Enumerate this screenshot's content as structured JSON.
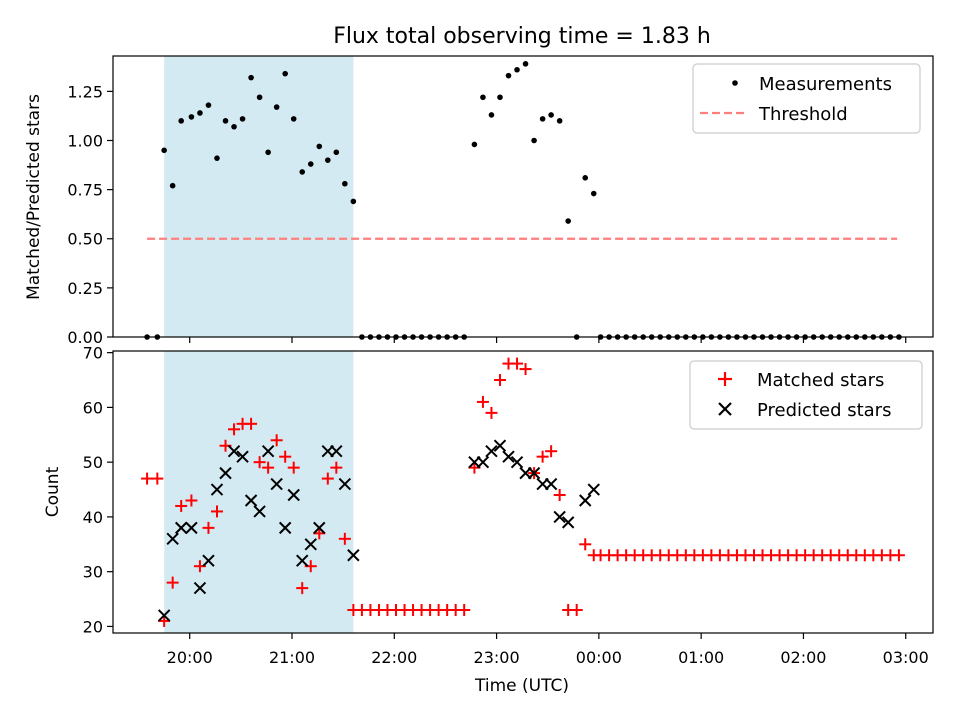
{
  "figure": {
    "title": "Flux total observing time = 1.83 h",
    "xlabel": "Time (UTC)",
    "xticks": [
      "20:00",
      "21:00",
      "22:00",
      "23:00",
      "00:00",
      "01:00",
      "02:00",
      "03:00"
    ]
  },
  "colors": {
    "measurement": "#000000",
    "threshold": "#ff7f7f",
    "matched": "#ff0000",
    "predicted": "#000000",
    "shade": "#add8e6"
  },
  "chart_data": [
    {
      "type": "scatter",
      "ylabel": "Matched/Predicted stars",
      "xlim": [
        "19:15",
        "03:16"
      ],
      "ylim": [
        0,
        1.43
      ],
      "yticks": [
        "0.00",
        "0.25",
        "0.50",
        "0.75",
        "1.00",
        "1.25"
      ],
      "shaded_region": [
        "19:45",
        "21:36"
      ],
      "legend_position": "upper right",
      "legend": [
        "Measurements",
        "Threshold"
      ],
      "threshold": {
        "name": "Threshold",
        "y": 0.5,
        "x_range": [
          "19:35",
          "02:55"
        ]
      },
      "series": [
        {
          "name": "Measurements",
          "points": [
            [
              "19:35",
              0
            ],
            [
              "19:41",
              0
            ],
            [
              "19:45",
              0.95
            ],
            [
              "19:50",
              0.77
            ],
            [
              "19:55",
              1.1
            ],
            [
              "20:01",
              1.12
            ],
            [
              "20:06",
              1.14
            ],
            [
              "20:11",
              1.18
            ],
            [
              "20:16",
              0.91
            ],
            [
              "20:21",
              1.1
            ],
            [
              "20:26",
              1.07
            ],
            [
              "20:31",
              1.11
            ],
            [
              "20:36",
              1.32
            ],
            [
              "20:41",
              1.22
            ],
            [
              "20:46",
              0.94
            ],
            [
              "20:51",
              1.17
            ],
            [
              "20:56",
              1.34
            ],
            [
              "21:01",
              1.11
            ],
            [
              "21:06",
              0.84
            ],
            [
              "21:11",
              0.88
            ],
            [
              "21:16",
              0.97
            ],
            [
              "21:21",
              0.9
            ],
            [
              "21:26",
              0.94
            ],
            [
              "21:31",
              0.78
            ],
            [
              "21:36",
              0.69
            ],
            [
              "21:41",
              0
            ],
            [
              "21:46",
              0
            ],
            [
              "21:51",
              0
            ],
            [
              "21:56",
              0
            ],
            [
              "22:01",
              0
            ],
            [
              "22:06",
              0
            ],
            [
              "22:11",
              0
            ],
            [
              "22:16",
              0
            ],
            [
              "22:21",
              0
            ],
            [
              "22:26",
              0
            ],
            [
              "22:31",
              0
            ],
            [
              "22:36",
              0
            ],
            [
              "22:41",
              0
            ],
            [
              "22:47",
              0.98
            ],
            [
              "22:52",
              1.22
            ],
            [
              "22:57",
              1.13
            ],
            [
              "23:02",
              1.22
            ],
            [
              "23:07",
              1.33
            ],
            [
              "23:12",
              1.36
            ],
            [
              "23:17",
              1.39
            ],
            [
              "23:22",
              1.0
            ],
            [
              "23:27",
              1.11
            ],
            [
              "23:32",
              1.13
            ],
            [
              "23:37",
              1.1
            ],
            [
              "23:42",
              0.59
            ],
            [
              "23:47",
              0
            ],
            [
              "23:52",
              0.81
            ],
            [
              "23:57",
              0.73
            ],
            [
              "00:01",
              0
            ],
            [
              "00:06",
              0
            ],
            [
              "00:11",
              0
            ],
            [
              "00:16",
              0
            ],
            [
              "00:21",
              0
            ],
            [
              "00:26",
              0
            ],
            [
              "00:31",
              0
            ],
            [
              "00:36",
              0
            ],
            [
              "00:41",
              0
            ],
            [
              "00:46",
              0
            ],
            [
              "00:51",
              0
            ],
            [
              "00:56",
              0
            ],
            [
              "01:01",
              0
            ],
            [
              "01:06",
              0
            ],
            [
              "01:11",
              0
            ],
            [
              "01:16",
              0
            ],
            [
              "01:21",
              0
            ],
            [
              "01:26",
              0
            ],
            [
              "01:31",
              0
            ],
            [
              "01:36",
              0
            ],
            [
              "01:41",
              0
            ],
            [
              "01:46",
              0
            ],
            [
              "01:51",
              0
            ],
            [
              "01:56",
              0
            ],
            [
              "02:01",
              0
            ],
            [
              "02:06",
              0
            ],
            [
              "02:11",
              0
            ],
            [
              "02:16",
              0
            ],
            [
              "02:21",
              0
            ],
            [
              "02:26",
              0
            ],
            [
              "02:31",
              0
            ],
            [
              "02:36",
              0
            ],
            [
              "02:41",
              0
            ],
            [
              "02:46",
              0
            ],
            [
              "02:51",
              0
            ],
            [
              "02:56",
              0
            ]
          ]
        }
      ]
    },
    {
      "type": "scatter",
      "ylabel": "Count",
      "xlim": [
        "19:15",
        "03:16"
      ],
      "ylim": [
        18.8,
        70.3
      ],
      "yticks": [
        "20",
        "30",
        "40",
        "50",
        "60",
        "70"
      ],
      "shaded_region": [
        "19:45",
        "21:36"
      ],
      "legend_position": "upper right",
      "legend": [
        "Matched stars",
        "Predicted stars"
      ],
      "series": [
        {
          "name": "Matched stars",
          "marker": "plus",
          "points": [
            [
              "19:35",
              47
            ],
            [
              "19:41",
              47
            ],
            [
              "19:45",
              21
            ],
            [
              "19:50",
              28
            ],
            [
              "19:55",
              42
            ],
            [
              "20:01",
              43
            ],
            [
              "20:06",
              31
            ],
            [
              "20:11",
              38
            ],
            [
              "20:16",
              41
            ],
            [
              "20:21",
              53
            ],
            [
              "20:26",
              56
            ],
            [
              "20:31",
              57
            ],
            [
              "20:36",
              57
            ],
            [
              "20:41",
              50
            ],
            [
              "20:46",
              49
            ],
            [
              "20:51",
              54
            ],
            [
              "20:56",
              51
            ],
            [
              "21:01",
              49
            ],
            [
              "21:06",
              27
            ],
            [
              "21:11",
              31
            ],
            [
              "21:16",
              37
            ],
            [
              "21:21",
              47
            ],
            [
              "21:26",
              49
            ],
            [
              "21:31",
              36
            ],
            [
              "21:36",
              23
            ],
            [
              "21:41",
              23
            ],
            [
              "21:46",
              23
            ],
            [
              "21:51",
              23
            ],
            [
              "21:56",
              23
            ],
            [
              "22:01",
              23
            ],
            [
              "22:06",
              23
            ],
            [
              "22:11",
              23
            ],
            [
              "22:16",
              23
            ],
            [
              "22:21",
              23
            ],
            [
              "22:26",
              23
            ],
            [
              "22:31",
              23
            ],
            [
              "22:36",
              23
            ],
            [
              "22:41",
              23
            ],
            [
              "22:47",
              49
            ],
            [
              "22:52",
              61
            ],
            [
              "22:57",
              59
            ],
            [
              "23:02",
              65
            ],
            [
              "23:07",
              68
            ],
            [
              "23:12",
              68
            ],
            [
              "23:17",
              67
            ],
            [
              "23:22",
              48
            ],
            [
              "23:27",
              51
            ],
            [
              "23:32",
              52
            ],
            [
              "23:37",
              44
            ],
            [
              "23:42",
              23
            ],
            [
              "23:47",
              23
            ],
            [
              "23:52",
              35
            ],
            [
              "23:57",
              33
            ],
            [
              "00:01",
              33
            ],
            [
              "00:06",
              33
            ],
            [
              "00:11",
              33
            ],
            [
              "00:16",
              33
            ],
            [
              "00:21",
              33
            ],
            [
              "00:26",
              33
            ],
            [
              "00:31",
              33
            ],
            [
              "00:36",
              33
            ],
            [
              "00:41",
              33
            ],
            [
              "00:46",
              33
            ],
            [
              "00:51",
              33
            ],
            [
              "00:56",
              33
            ],
            [
              "01:01",
              33
            ],
            [
              "01:06",
              33
            ],
            [
              "01:11",
              33
            ],
            [
              "01:16",
              33
            ],
            [
              "01:21",
              33
            ],
            [
              "01:26",
              33
            ],
            [
              "01:31",
              33
            ],
            [
              "01:36",
              33
            ],
            [
              "01:41",
              33
            ],
            [
              "01:46",
              33
            ],
            [
              "01:51",
              33
            ],
            [
              "01:56",
              33
            ],
            [
              "02:01",
              33
            ],
            [
              "02:06",
              33
            ],
            [
              "02:11",
              33
            ],
            [
              "02:16",
              33
            ],
            [
              "02:21",
              33
            ],
            [
              "02:26",
              33
            ],
            [
              "02:31",
              33
            ],
            [
              "02:36",
              33
            ],
            [
              "02:41",
              33
            ],
            [
              "02:46",
              33
            ],
            [
              "02:51",
              33
            ],
            [
              "02:56",
              33
            ]
          ]
        },
        {
          "name": "Predicted stars",
          "marker": "x",
          "points": [
            [
              "19:45",
              22
            ],
            [
              "19:50",
              36
            ],
            [
              "19:55",
              38
            ],
            [
              "20:01",
              38
            ],
            [
              "20:06",
              27
            ],
            [
              "20:11",
              32
            ],
            [
              "20:16",
              45
            ],
            [
              "20:21",
              48
            ],
            [
              "20:26",
              52
            ],
            [
              "20:31",
              51
            ],
            [
              "20:36",
              43
            ],
            [
              "20:41",
              41
            ],
            [
              "20:46",
              52
            ],
            [
              "20:51",
              46
            ],
            [
              "20:56",
              38
            ],
            [
              "21:01",
              44
            ],
            [
              "21:06",
              32
            ],
            [
              "21:11",
              35
            ],
            [
              "21:16",
              38
            ],
            [
              "21:21",
              52
            ],
            [
              "21:26",
              52
            ],
            [
              "21:31",
              46
            ],
            [
              "21:36",
              33
            ],
            [
              "22:47",
              50
            ],
            [
              "22:52",
              50
            ],
            [
              "22:57",
              52
            ],
            [
              "23:02",
              53
            ],
            [
              "23:07",
              51
            ],
            [
              "23:12",
              50
            ],
            [
              "23:17",
              48
            ],
            [
              "23:22",
              48
            ],
            [
              "23:27",
              46
            ],
            [
              "23:32",
              46
            ],
            [
              "23:37",
              40
            ],
            [
              "23:42",
              39
            ],
            [
              "23:52",
              43
            ],
            [
              "23:57",
              45
            ]
          ]
        }
      ]
    }
  ]
}
